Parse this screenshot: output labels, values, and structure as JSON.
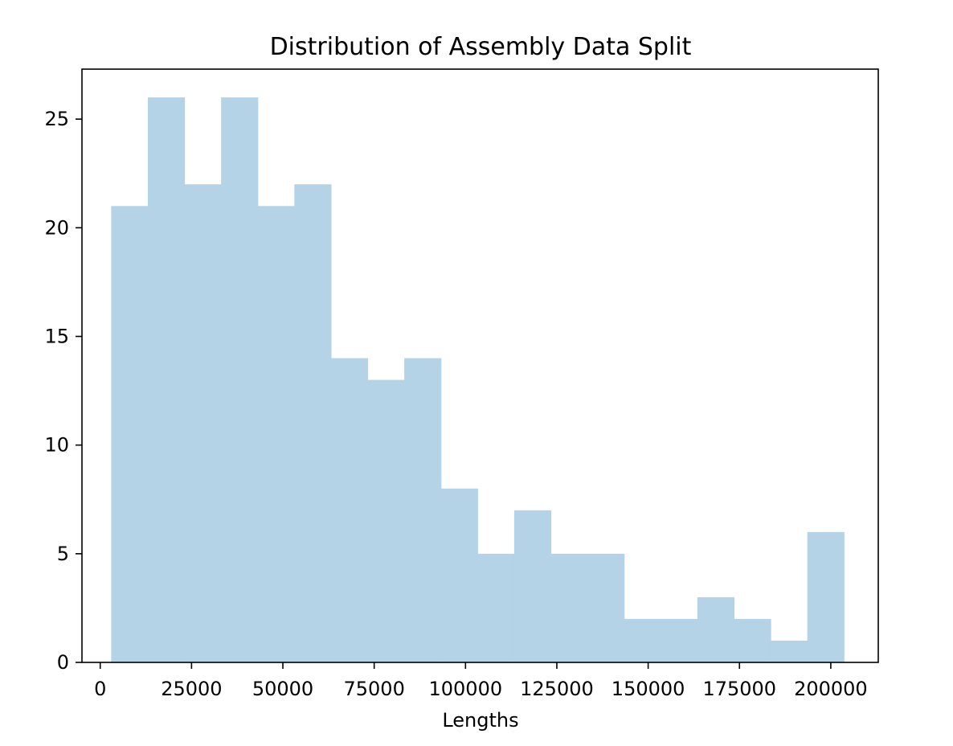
{
  "chart_data": {
    "type": "bar",
    "title": "Distribution of Assembly Data Split",
    "xlabel": "Lengths",
    "ylabel": "",
    "bar_color": "#b4d3e7",
    "axis_color": "#000000",
    "grid": false,
    "legend": "none",
    "xlim": [
      -5000,
      213000
    ],
    "ylim": [
      0,
      27.3
    ],
    "xticks": [
      0,
      25000,
      50000,
      75000,
      100000,
      125000,
      150000,
      175000,
      200000
    ],
    "xtick_labels": [
      "0",
      "25000",
      "50000",
      "75000",
      "100000",
      "125000",
      "150000",
      "175000",
      "200000"
    ],
    "yticks": [
      0,
      5,
      10,
      15,
      20,
      25
    ],
    "ytick_labels": [
      "0",
      "5",
      "10",
      "15",
      "20",
      "25"
    ],
    "bin_edges": [
      3000,
      13030,
      23060,
      33090,
      43120,
      53150,
      63180,
      73210,
      83240,
      93270,
      103300,
      113330,
      123360,
      133390,
      143420,
      153450,
      163480,
      173510,
      183540,
      193570,
      203600
    ],
    "values": [
      21,
      26,
      22,
      26,
      21,
      22,
      14,
      13,
      14,
      8,
      5,
      7,
      5,
      5,
      2,
      2,
      3,
      2,
      1,
      6
    ]
  }
}
